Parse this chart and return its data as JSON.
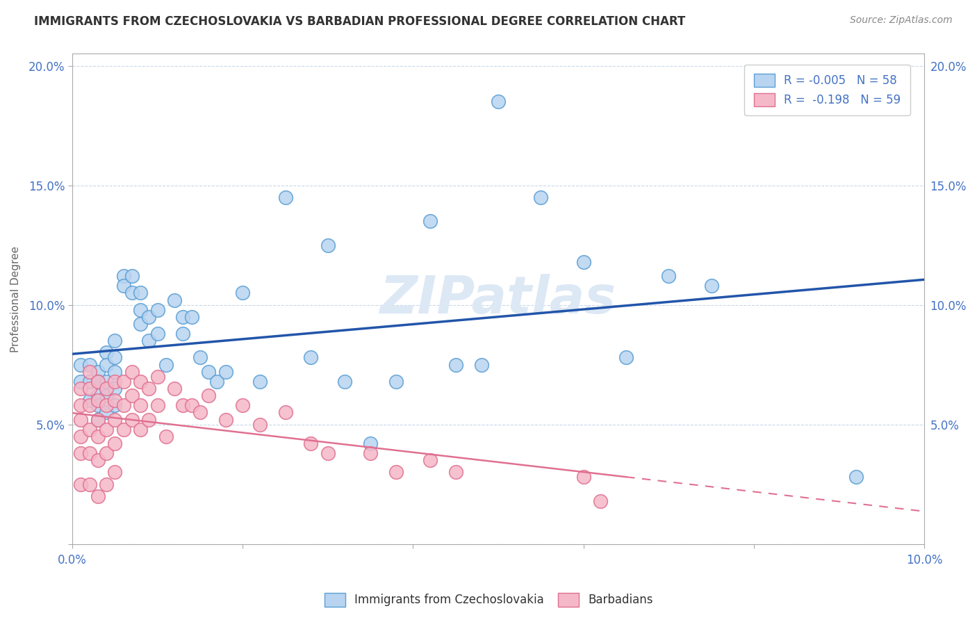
{
  "title": "IMMIGRANTS FROM CZECHOSLOVAKIA VS BARBADIAN PROFESSIONAL DEGREE CORRELATION CHART",
  "source_text": "Source: ZipAtlas.com",
  "ylabel": "Professional Degree",
  "series1_label": "Immigrants from Czechoslovakia",
  "series2_label": "Barbadians",
  "series1_color": "#b8d4f0",
  "series1_edge": "#5a9fd4",
  "series2_color": "#f5b8c8",
  "series2_edge": "#e07090",
  "series1_line_color": "#2255aa",
  "series2_line_color": "#e07090",
  "watermark": "ZIPatlas",
  "xlim": [
    0.0,
    0.1
  ],
  "ylim": [
    0.0,
    0.205
  ],
  "xticks": [
    0.0,
    0.02,
    0.04,
    0.06,
    0.08,
    0.1
  ],
  "xtick_labels": [
    "0.0%",
    "",
    "",
    "",
    "",
    "10.0%"
  ],
  "yticks": [
    0.0,
    0.05,
    0.1,
    0.15,
    0.2
  ],
  "ytick_labels_left": [
    "",
    "5.0%",
    "10.0%",
    "15.0%",
    "20.0%"
  ],
  "ytick_labels_right": [
    "",
    "5.0%",
    "10.0%",
    "15.0%",
    "20.0%"
  ],
  "legend1_label": "R = -0.005   N = 58",
  "legend2_label": "R =  -0.198   N = 59",
  "series1_x": [
    0.001,
    0.001,
    0.002,
    0.002,
    0.002,
    0.003,
    0.003,
    0.003,
    0.003,
    0.003,
    0.004,
    0.004,
    0.004,
    0.004,
    0.004,
    0.005,
    0.005,
    0.005,
    0.005,
    0.005,
    0.006,
    0.006,
    0.007,
    0.007,
    0.008,
    0.008,
    0.008,
    0.009,
    0.009,
    0.01,
    0.01,
    0.011,
    0.012,
    0.013,
    0.013,
    0.014,
    0.015,
    0.016,
    0.017,
    0.018,
    0.02,
    0.022,
    0.025,
    0.028,
    0.03,
    0.032,
    0.035,
    0.038,
    0.042,
    0.045,
    0.048,
    0.05,
    0.055,
    0.06,
    0.065,
    0.07,
    0.075,
    0.092
  ],
  "series1_y": [
    0.075,
    0.068,
    0.075,
    0.068,
    0.06,
    0.072,
    0.068,
    0.062,
    0.058,
    0.052,
    0.08,
    0.075,
    0.068,
    0.062,
    0.055,
    0.085,
    0.078,
    0.072,
    0.065,
    0.058,
    0.112,
    0.108,
    0.112,
    0.105,
    0.105,
    0.098,
    0.092,
    0.095,
    0.085,
    0.098,
    0.088,
    0.075,
    0.102,
    0.095,
    0.088,
    0.095,
    0.078,
    0.072,
    0.068,
    0.072,
    0.105,
    0.068,
    0.145,
    0.078,
    0.125,
    0.068,
    0.042,
    0.068,
    0.135,
    0.075,
    0.075,
    0.185,
    0.145,
    0.118,
    0.078,
    0.112,
    0.108,
    0.028
  ],
  "series2_x": [
    0.001,
    0.001,
    0.001,
    0.001,
    0.001,
    0.001,
    0.002,
    0.002,
    0.002,
    0.002,
    0.002,
    0.002,
    0.003,
    0.003,
    0.003,
    0.003,
    0.003,
    0.003,
    0.004,
    0.004,
    0.004,
    0.004,
    0.004,
    0.005,
    0.005,
    0.005,
    0.005,
    0.005,
    0.006,
    0.006,
    0.006,
    0.007,
    0.007,
    0.007,
    0.008,
    0.008,
    0.008,
    0.009,
    0.009,
    0.01,
    0.01,
    0.011,
    0.012,
    0.013,
    0.014,
    0.015,
    0.016,
    0.018,
    0.02,
    0.022,
    0.025,
    0.028,
    0.03,
    0.035,
    0.038,
    0.042,
    0.045,
    0.06,
    0.062
  ],
  "series2_y": [
    0.065,
    0.058,
    0.052,
    0.045,
    0.038,
    0.025,
    0.072,
    0.065,
    0.058,
    0.048,
    0.038,
    0.025,
    0.068,
    0.06,
    0.052,
    0.045,
    0.035,
    0.02,
    0.065,
    0.058,
    0.048,
    0.038,
    0.025,
    0.068,
    0.06,
    0.052,
    0.042,
    0.03,
    0.068,
    0.058,
    0.048,
    0.072,
    0.062,
    0.052,
    0.068,
    0.058,
    0.048,
    0.065,
    0.052,
    0.07,
    0.058,
    0.045,
    0.065,
    0.058,
    0.058,
    0.055,
    0.062,
    0.052,
    0.058,
    0.05,
    0.055,
    0.042,
    0.038,
    0.038,
    0.03,
    0.035,
    0.03,
    0.028,
    0.018
  ],
  "series1_r": -0.005,
  "series2_r": -0.198,
  "background_color": "#ffffff",
  "grid_color": "#c8d8e8",
  "title_color": "#333333",
  "axis_color": "#aaaaaa",
  "tick_color": "#4472c4",
  "source_color": "#888888"
}
